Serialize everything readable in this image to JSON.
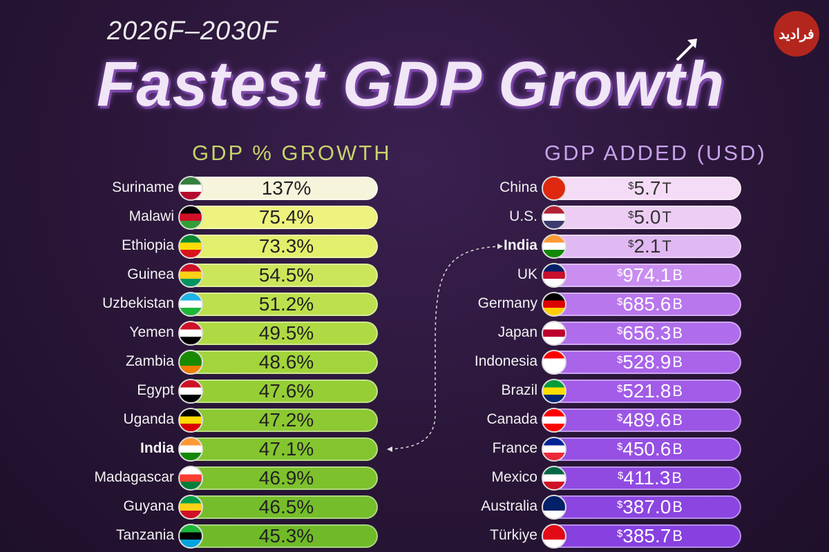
{
  "header": {
    "subtitle": "2026F–2030F",
    "title": "Fastest GDP Growth",
    "logo_text": "فرادید"
  },
  "chart_data": {
    "type": "table",
    "title": "Fastest GDP Growth",
    "subtitle": "2026F–2030F",
    "left": {
      "heading": "GDP % GROWTH",
      "rows": [
        {
          "country": "Suriname",
          "value": "137%",
          "num": 137,
          "color": "#f7f4dc",
          "flag": [
            "#377e3f",
            "#ffffff",
            "#b40a2d"
          ]
        },
        {
          "country": "Malawi",
          "value": "75.4%",
          "num": 75.4,
          "color": "#eef27e",
          "flag": [
            "#000000",
            "#ce1126",
            "#339e35"
          ]
        },
        {
          "country": "Ethiopia",
          "value": "73.3%",
          "num": 73.3,
          "color": "#e2ef6c",
          "flag": [
            "#078930",
            "#fcdd09",
            "#da121a"
          ]
        },
        {
          "country": "Guinea",
          "value": "54.5%",
          "num": 54.5,
          "color": "#cbe65a",
          "flag": [
            "#ce1126",
            "#fcd116",
            "#009460"
          ]
        },
        {
          "country": "Uzbekistan",
          "value": "51.2%",
          "num": 51.2,
          "color": "#bde04e",
          "flag": [
            "#1eb5e6",
            "#ffffff",
            "#1eb53a"
          ]
        },
        {
          "country": "Yemen",
          "value": "49.5%",
          "num": 49.5,
          "color": "#b0da44",
          "flag": [
            "#ce1126",
            "#ffffff",
            "#000000"
          ]
        },
        {
          "country": "Zambia",
          "value": "48.6%",
          "num": 48.6,
          "color": "#a2d43c",
          "flag": [
            "#198a00",
            "#198a00",
            "#ef7d00"
          ]
        },
        {
          "country": "Egypt",
          "value": "47.6%",
          "num": 47.6,
          "color": "#96ce36",
          "flag": [
            "#ce1126",
            "#ffffff",
            "#000000"
          ]
        },
        {
          "country": "Uganda",
          "value": "47.2%",
          "num": 47.2,
          "color": "#8cc932",
          "flag": [
            "#000000",
            "#fcdc04",
            "#d90000"
          ]
        },
        {
          "country": "India",
          "value": "47.1%",
          "num": 47.1,
          "color": "#84c52f",
          "flag": [
            "#ff9933",
            "#ffffff",
            "#138808"
          ],
          "highlight": true
        },
        {
          "country": "Madagascar",
          "value": "46.9%",
          "num": 46.9,
          "color": "#7dc12d",
          "flag": [
            "#ffffff",
            "#fc3d32",
            "#007e3a"
          ]
        },
        {
          "country": "Guyana",
          "value": "46.5%",
          "num": 46.5,
          "color": "#76bd2b",
          "flag": [
            "#009e49",
            "#fcd116",
            "#ce1126"
          ]
        },
        {
          "country": "Tanzania",
          "value": "45.3%",
          "num": 45.3,
          "color": "#70ba29",
          "flag": [
            "#1eb53a",
            "#000000",
            "#00a3dd"
          ]
        }
      ]
    },
    "right": {
      "heading": "GDP ADDED (USD)",
      "rows": [
        {
          "country": "China",
          "currency": "$",
          "amount": "5.7",
          "unit": "T",
          "num_usd_billion": 5700,
          "color": "#f5dcf6",
          "flag": [
            "#de2910",
            "#de2910",
            "#de2910"
          ]
        },
        {
          "country": "U.S.",
          "currency": "$",
          "amount": "5.0",
          "unit": "T",
          "num_usd_billion": 5000,
          "color": "#edcdf4",
          "flag": [
            "#b22234",
            "#ffffff",
            "#3c3b6e"
          ]
        },
        {
          "country": "India",
          "currency": "$",
          "amount": "2.1",
          "unit": "T",
          "num_usd_billion": 2100,
          "color": "#e0b8f2",
          "flag": [
            "#ff9933",
            "#ffffff",
            "#138808"
          ],
          "highlight": true
        },
        {
          "country": "UK",
          "currency": "$",
          "amount": "974.1",
          "unit": "B",
          "num_usd_billion": 974.1,
          "color": "#c98ef0",
          "flag": [
            "#012169",
            "#c8102e",
            "#ffffff"
          ]
        },
        {
          "country": "Germany",
          "currency": "$",
          "amount": "685.6",
          "unit": "B",
          "num_usd_billion": 685.6,
          "color": "#b977ed",
          "flag": [
            "#000000",
            "#dd0000",
            "#ffce00"
          ]
        },
        {
          "country": "Japan",
          "currency": "$",
          "amount": "656.3",
          "unit": "B",
          "num_usd_billion": 656.3,
          "color": "#b06deb",
          "flag": [
            "#ffffff",
            "#bc002d",
            "#ffffff"
          ]
        },
        {
          "country": "Indonesia",
          "currency": "$",
          "amount": "528.9",
          "unit": "B",
          "num_usd_billion": 528.9,
          "color": "#a964e9",
          "flag": [
            "#ff0000",
            "#ffffff",
            "#ffffff"
          ]
        },
        {
          "country": "Brazil",
          "currency": "$",
          "amount": "521.8",
          "unit": "B",
          "num_usd_billion": 521.8,
          "color": "#a25ce7",
          "flag": [
            "#009c3b",
            "#ffdf00",
            "#002776"
          ]
        },
        {
          "country": "Canada",
          "currency": "$",
          "amount": "489.6",
          "unit": "B",
          "num_usd_billion": 489.6,
          "color": "#9c56e5",
          "flag": [
            "#ff0000",
            "#ffffff",
            "#ff0000"
          ]
        },
        {
          "country": "France",
          "currency": "$",
          "amount": "450.6",
          "unit": "B",
          "num_usd_billion": 450.6,
          "color": "#9650e3",
          "flag": [
            "#002395",
            "#ffffff",
            "#ed2939"
          ]
        },
        {
          "country": "Mexico",
          "currency": "$",
          "amount": "411.3",
          "unit": "B",
          "num_usd_billion": 411.3,
          "color": "#904ae2",
          "flag": [
            "#006847",
            "#ffffff",
            "#ce1126"
          ]
        },
        {
          "country": "Australia",
          "currency": "$",
          "amount": "387.0",
          "unit": "B",
          "num_usd_billion": 387.0,
          "color": "#8b45e0",
          "flag": [
            "#012169",
            "#012169",
            "#ffffff"
          ]
        },
        {
          "country": "Türkiye",
          "currency": "$",
          "amount": "385.7",
          "unit": "B",
          "num_usd_billion": 385.7,
          "color": "#8741df",
          "flag": [
            "#e30a17",
            "#e30a17",
            "#ffffff"
          ]
        }
      ]
    }
  }
}
